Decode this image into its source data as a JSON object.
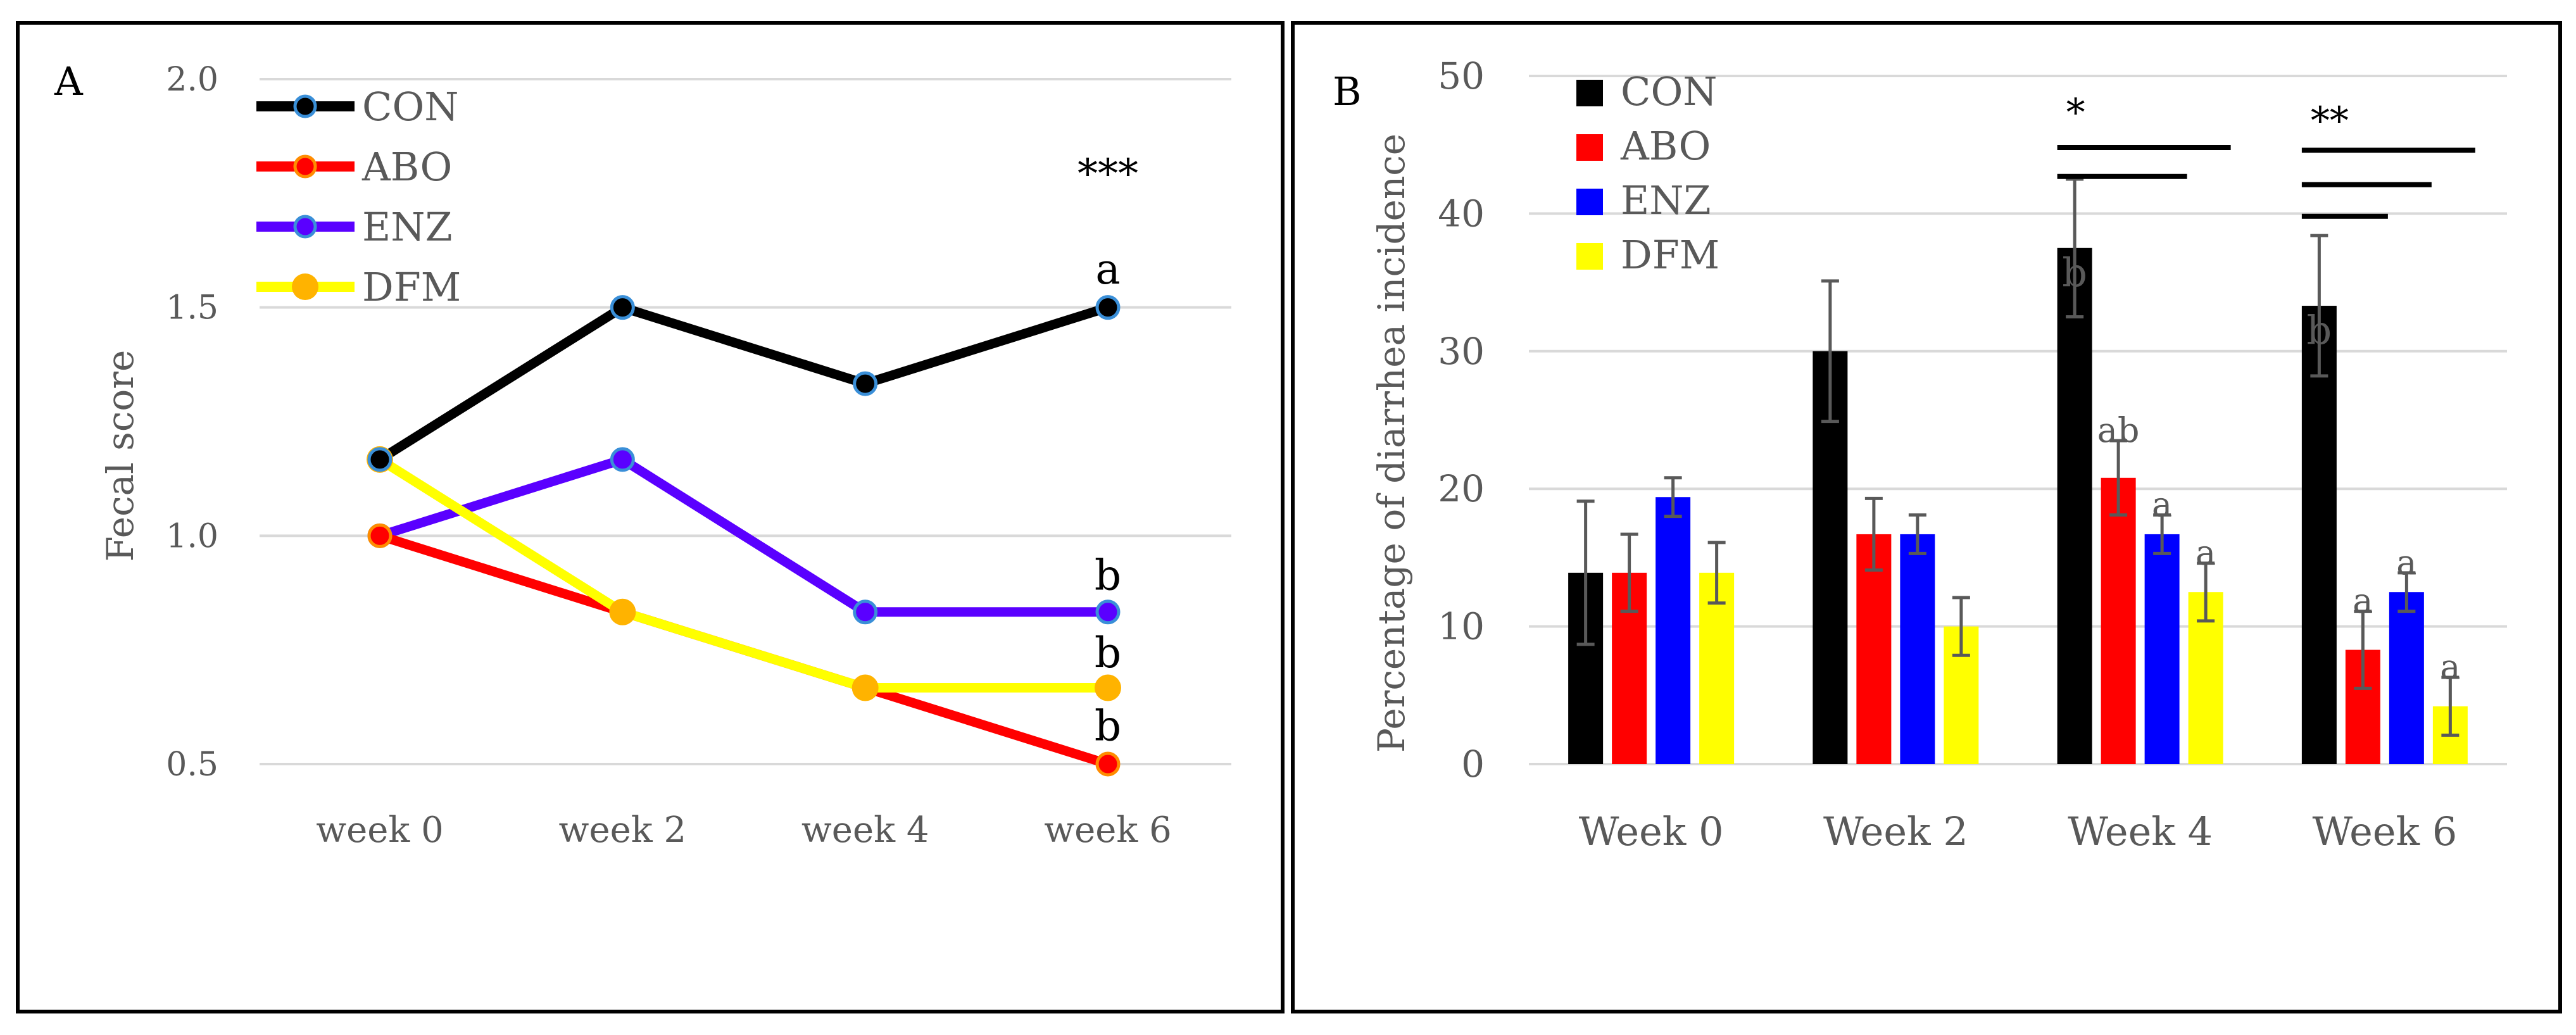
{
  "figure": {
    "panel_a_label": "A",
    "panel_b_label": "B"
  },
  "chart_data": [
    {
      "type": "line",
      "panel": "A",
      "title": "",
      "xlabel": "",
      "ylabel": "Fecal score",
      "ylim": [
        0.5,
        2.0
      ],
      "yticks": [
        "0.5",
        "1.0",
        "1.5",
        "2.0"
      ],
      "categories": [
        "week 0",
        "week 2",
        "week 4",
        "week 6"
      ],
      "series": [
        {
          "name": "CON",
          "color": "#000000",
          "marker": "#3a8fd8",
          "values": [
            1.167,
            1.5,
            1.333,
            1.5
          ]
        },
        {
          "name": "ABO",
          "color": "#ff0000",
          "marker": "#ff8c00",
          "values": [
            1.0,
            0.833,
            0.667,
            0.5
          ]
        },
        {
          "name": "ENZ",
          "color": "#5a00ff",
          "marker": "#3a8fd8",
          "values": [
            1.0,
            1.167,
            0.833,
            0.833
          ]
        },
        {
          "name": "DFM",
          "color": "#ffff00",
          "marker": "#ffb300",
          "values": [
            1.167,
            0.833,
            0.667,
            0.667
          ]
        }
      ],
      "annotations": [
        {
          "text": "***",
          "category": "week 6",
          "value": 1.79
        },
        {
          "text": "a",
          "category": "week 6",
          "value": 1.58
        },
        {
          "text": "b",
          "category": "week 6",
          "value": 0.91
        },
        {
          "text": "b",
          "category": "week 6",
          "value": 0.74
        },
        {
          "text": "b",
          "category": "week 6",
          "value": 0.58
        }
      ],
      "legend": "top-left",
      "grid": true
    },
    {
      "type": "bar",
      "panel": "B",
      "title": "",
      "xlabel": "",
      "ylabel": "Percentage of diarrhea incidence",
      "ylim": [
        0,
        50
      ],
      "yticks": [
        "0",
        "10",
        "20",
        "30",
        "40",
        "50"
      ],
      "categories": [
        "Week 0",
        "Week 2",
        "Week 4",
        "Week 6"
      ],
      "series": [
        {
          "name": "CON",
          "color": "#000000",
          "values": [
            13.9,
            30.0,
            37.5,
            33.3
          ],
          "errors": [
            5.2,
            5.1,
            5.0,
            5.1
          ],
          "labels": [
            "",
            "",
            "b",
            "b"
          ]
        },
        {
          "name": "ABO",
          "color": "#ff0000",
          "values": [
            13.9,
            16.7,
            20.8,
            8.3
          ],
          "errors": [
            2.8,
            2.6,
            2.7,
            2.8
          ],
          "labels": [
            "",
            "",
            "ab",
            "a"
          ]
        },
        {
          "name": "ENZ",
          "color": "#0000ff",
          "values": [
            19.4,
            16.7,
            16.7,
            12.5
          ],
          "errors": [
            1.4,
            1.4,
            1.4,
            1.4
          ],
          "labels": [
            "",
            "",
            "a",
            "a"
          ]
        },
        {
          "name": "DFM",
          "color": "#ffff00",
          "values": [
            13.9,
            10.0,
            12.5,
            4.2
          ],
          "errors": [
            2.2,
            2.1,
            2.1,
            2.1
          ],
          "labels": [
            "",
            "",
            "a",
            "a"
          ]
        }
      ],
      "significance": [
        {
          "text": "*",
          "category": "Week 4",
          "value": 47.8,
          "bars": [
            {
              "to": "DFM",
              "value": 44.8
            },
            {
              "to": "ENZ",
              "value": 42.7
            }
          ]
        },
        {
          "text": "**",
          "category": "Week 6",
          "value": 47.2,
          "bars": [
            {
              "to": "DFM",
              "value": 44.6
            },
            {
              "to": "ENZ",
              "value": 42.1
            },
            {
              "to": "ABO",
              "value": 39.8
            }
          ]
        }
      ],
      "legend": "top-left",
      "grid": true
    }
  ]
}
